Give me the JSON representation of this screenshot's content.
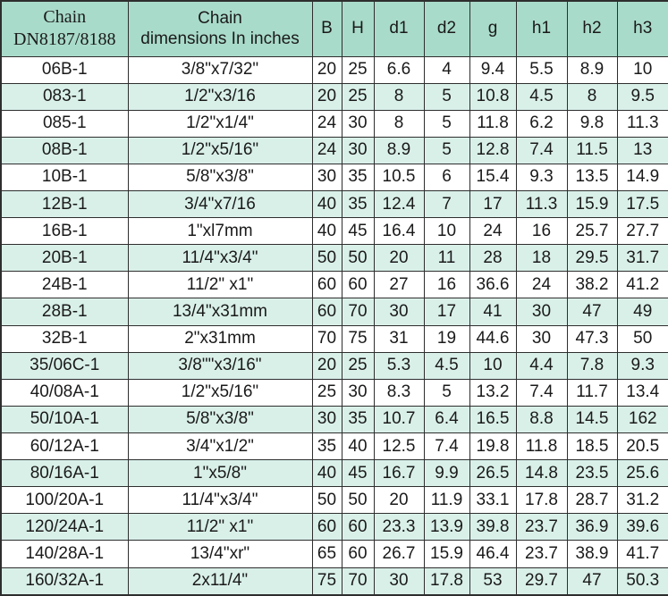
{
  "colors": {
    "header_bg": "#a9dbca",
    "stripe_bg": "#d9f0e9",
    "row_bg": "#ffffff",
    "border": "#2e2e2e",
    "text": "#1a1a1a"
  },
  "table": {
    "header": {
      "chain_col_line1": "Chain",
      "chain_col_line2": "DN8187/8188",
      "dims_col_line1": "Chain",
      "dims_col_line2": "dimensions In inches",
      "metric_cols": [
        "B",
        "H",
        "d1",
        "d2",
        "g",
        "h1",
        "h2",
        "h3"
      ]
    },
    "column_keys": [
      "chain",
      "dims",
      "B",
      "H",
      "d1",
      "d2",
      "g",
      "h1",
      "h2",
      "h3"
    ],
    "rows": [
      [
        "06B-1",
        "3/8\"x7/32\"",
        "20",
        "25",
        "6.6",
        "4",
        "9.4",
        "5.5",
        "8.9",
        "10"
      ],
      [
        "083-1",
        "1/2\"x3/16",
        "20",
        "25",
        "8",
        "5",
        "10.8",
        "4.5",
        "8",
        "9.5"
      ],
      [
        "085-1",
        "1/2\"x1/4\"",
        "24",
        "30",
        "8",
        "5",
        "11.8",
        "6.2",
        "9.8",
        "11.3"
      ],
      [
        "08B-1",
        "1/2\"x5/16\"",
        "24",
        "30",
        "8.9",
        "5",
        "12.8",
        "7.4",
        "11.5",
        "13"
      ],
      [
        "10B-1",
        "5/8\"x3/8\"",
        "30",
        "35",
        "10.5",
        "6",
        "15.4",
        "9.3",
        "13.5",
        "14.9"
      ],
      [
        "12B-1",
        "3/4\"x7/16",
        "40",
        "35",
        "12.4",
        "7",
        "17",
        "11.3",
        "15.9",
        "17.5"
      ],
      [
        "16B-1",
        "1\"xl7mm",
        "40",
        "45",
        "16.4",
        "10",
        "24",
        "16",
        "25.7",
        "27.7"
      ],
      [
        "20B-1",
        "11/4\"x3/4\"",
        "50",
        "50",
        "20",
        "11",
        "28",
        "18",
        "29.5",
        "31.7"
      ],
      [
        "24B-1",
        "11/2\" x1\"",
        "60",
        "60",
        "27",
        "16",
        "36.6",
        "24",
        "38.2",
        "41.2"
      ],
      [
        "28B-1",
        "13/4\"x31mm",
        "60",
        "70",
        "30",
        "17",
        "41",
        "30",
        "47",
        "49"
      ],
      [
        "32B-1",
        "2\"x31mm",
        "70",
        "75",
        "31",
        "19",
        "44.6",
        "30",
        "47.3",
        "50"
      ],
      [
        "35/06C-1",
        "3/8\"\"x3/16\"",
        "20",
        "25",
        "5.3",
        "4.5",
        "10",
        "4.4",
        "7.8",
        "9.3"
      ],
      [
        "40/08A-1",
        "1/2\"x5/16\"",
        "25",
        "30",
        "8.3",
        "5",
        "13.2",
        "7.4",
        "11.7",
        "13.4"
      ],
      [
        "50/10A-1",
        "5/8\"x3/8\"",
        "30",
        "35",
        "10.7",
        "6.4",
        "16.5",
        "8.8",
        "14.5",
        "162"
      ],
      [
        "60/12A-1",
        "3/4\"x1/2\"",
        "35",
        "40",
        "12.5",
        "7.4",
        "19.8",
        "11.8",
        "18.5",
        "20.5"
      ],
      [
        "80/16A-1",
        "1\"x5/8\"",
        "40",
        "45",
        "16.7",
        "9.9",
        "26.5",
        "14.8",
        "23.5",
        "25.6"
      ],
      [
        "100/20A-1",
        "11/4\"x3/4\"",
        "50",
        "50",
        "20",
        "11.9",
        "33.1",
        "17.8",
        "28.7",
        "31.2"
      ],
      [
        "120/24A-1",
        "11/2\" x1\"",
        "60",
        "60",
        "23.3",
        "13.9",
        "39.8",
        "23.7",
        "36.9",
        "39.6"
      ],
      [
        "140/28A-1",
        "13/4\"xr\"",
        "65",
        "60",
        "26.7",
        "15.9",
        "46.4",
        "23.7",
        "38.9",
        "41.7"
      ],
      [
        "160/32A-1",
        "2x11/4\"",
        "75",
        "70",
        "30",
        "17.8",
        "53",
        "29.7",
        "47",
        "50.3"
      ]
    ]
  }
}
